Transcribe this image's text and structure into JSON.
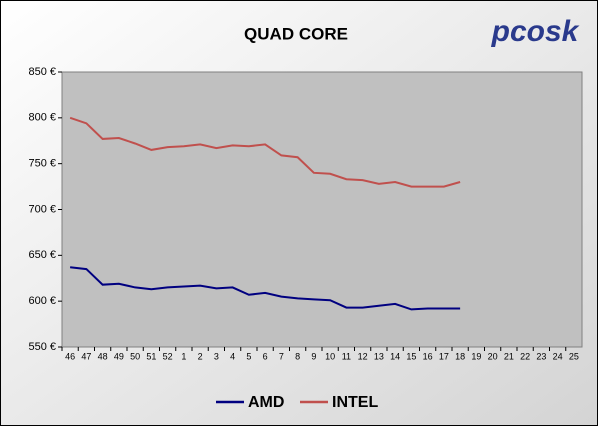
{
  "chart_data": {
    "type": "line",
    "title": "QUAD CORE",
    "logo": "pcosk",
    "categories": [
      "46",
      "47",
      "48",
      "49",
      "50",
      "51",
      "52",
      "1",
      "2",
      "3",
      "4",
      "5",
      "6",
      "7",
      "8",
      "9",
      "10",
      "11",
      "12",
      "13",
      "14",
      "15",
      "16",
      "17",
      "18",
      "19",
      "20",
      "21",
      "22",
      "23",
      "24",
      "25"
    ],
    "series": [
      {
        "name": "AMD",
        "color": "#000080",
        "values": [
          637,
          635,
          618,
          619,
          615,
          613,
          615,
          616,
          617,
          614,
          615,
          607,
          609,
          605,
          603,
          602,
          601,
          593,
          593,
          595,
          597,
          591,
          592,
          592,
          592,
          null,
          null,
          null,
          null,
          null,
          null,
          null
        ]
      },
      {
        "name": "INTEL",
        "color": "#c0504d",
        "values": [
          800,
          794,
          777,
          778,
          772,
          765,
          768,
          769,
          771,
          767,
          770,
          769,
          771,
          759,
          757,
          740,
          739,
          733,
          732,
          728,
          730,
          725,
          725,
          725,
          730,
          null,
          null,
          null,
          null,
          null,
          null,
          null
        ]
      }
    ],
    "ylim": [
      550,
      850
    ],
    "yticks": [
      {
        "value": 550,
        "label": "550 €"
      },
      {
        "value": 600,
        "label": "600 €"
      },
      {
        "value": 650,
        "label": "650 €"
      },
      {
        "value": 700,
        "label": "700 €"
      },
      {
        "value": 750,
        "label": "750 €"
      },
      {
        "value": 800,
        "label": "800 €"
      },
      {
        "value": 850,
        "label": "850 €"
      }
    ],
    "grid": false,
    "legend": "bottom"
  }
}
